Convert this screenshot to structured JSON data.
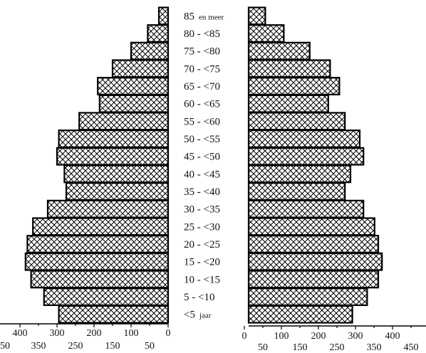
{
  "chart_data": {
    "type": "bar",
    "orientation": "horizontal",
    "layout": "population-pyramid",
    "categories": [
      {
        "main": "85",
        "suffix": "en meer"
      },
      {
        "main": "80 - <85",
        "suffix": ""
      },
      {
        "main": "75 - <80",
        "suffix": ""
      },
      {
        "main": "70 - <75",
        "suffix": ""
      },
      {
        "main": "65 - <70",
        "suffix": ""
      },
      {
        "main": "60 - <65",
        "suffix": ""
      },
      {
        "main": "55 - <60",
        "suffix": ""
      },
      {
        "main": "50 - <55",
        "suffix": ""
      },
      {
        "main": "45 - <50",
        "suffix": ""
      },
      {
        "main": "40 - <45",
        "suffix": ""
      },
      {
        "main": "35 - <40",
        "suffix": ""
      },
      {
        "main": "30 - <35",
        "suffix": ""
      },
      {
        "main": "25 - <30",
        "suffix": ""
      },
      {
        "main": "20 - <25",
        "suffix": ""
      },
      {
        "main": "15 - <20",
        "suffix": ""
      },
      {
        "main": "10 - <15",
        "suffix": ""
      },
      {
        "main": "5 - <10",
        "suffix": ""
      },
      {
        "main": "<5",
        "suffix": "jaar"
      }
    ],
    "series": [
      {
        "side": "left",
        "values": [
          25,
          55,
          100,
          150,
          190,
          185,
          240,
          295,
          300,
          280,
          275,
          325,
          365,
          380,
          385,
          370,
          335,
          295
        ]
      },
      {
        "side": "right",
        "values": [
          45,
          95,
          165,
          220,
          245,
          215,
          260,
          300,
          310,
          275,
          260,
          310,
          340,
          350,
          360,
          350,
          320,
          280
        ]
      }
    ],
    "left_axis": {
      "reversed": true,
      "range": [
        0,
        420
      ],
      "ticks_top": [
        400,
        300,
        200,
        100,
        0
      ],
      "ticks_bottom": [
        350,
        250,
        150,
        50
      ],
      "tick_prefix_left": "50"
    },
    "right_axis": {
      "range": [
        0,
        450
      ],
      "ticks_top": [
        0,
        100,
        200,
        300,
        400
      ],
      "ticks_bottom": [
        50,
        150,
        250,
        350,
        450
      ]
    },
    "fill_pattern": "crosshatch",
    "bar_color": "#000000",
    "grid": false,
    "legend": "none"
  }
}
